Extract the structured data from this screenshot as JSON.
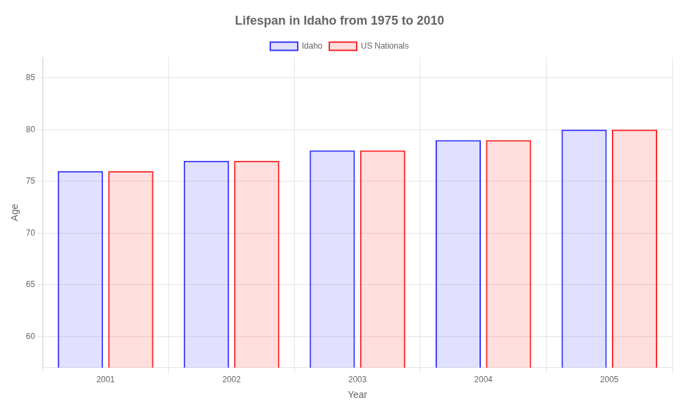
{
  "chart_data": {
    "type": "bar",
    "title": "Lifespan in Idaho from 1975 to 2010",
    "x_label": "Year",
    "y_label": "Age",
    "categories": [
      "2001",
      "2002",
      "2003",
      "2004",
      "2005"
    ],
    "series": [
      {
        "name": "Idaho",
        "color": "#3333ff",
        "values": [
          76,
          77,
          78,
          79,
          80
        ]
      },
      {
        "name": "US Nationals",
        "color": "#ff2222",
        "values": [
          76,
          77,
          78,
          79,
          80
        ]
      }
    ],
    "ylim": [
      57,
      87
    ],
    "yticks": [
      60,
      65,
      70,
      75,
      80,
      85
    ],
    "grid": true,
    "legend": "top"
  }
}
